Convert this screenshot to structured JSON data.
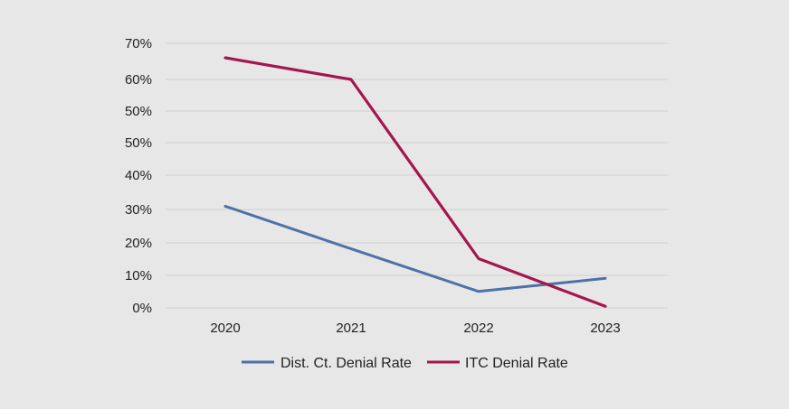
{
  "chart_data": {
    "type": "line",
    "title": "",
    "xlabel": "",
    "ylabel": "",
    "categories": [
      "2020",
      "2021",
      "2022",
      "2023"
    ],
    "y_tick_labels": [
      "0%",
      "10%",
      "20%",
      "30%",
      "40%",
      "50%",
      "50%",
      "60%",
      "70%"
    ],
    "grid": true,
    "legend_position": "bottom",
    "series": [
      {
        "name": "Dist. Ct. Denial Rate",
        "color": "#4e72a6",
        "values": [
          31,
          18,
          5,
          9
        ]
      },
      {
        "name": "ITC Denial Rate",
        "color": "#a3174e",
        "values": [
          66,
          60,
          15,
          0.5
        ]
      }
    ]
  }
}
